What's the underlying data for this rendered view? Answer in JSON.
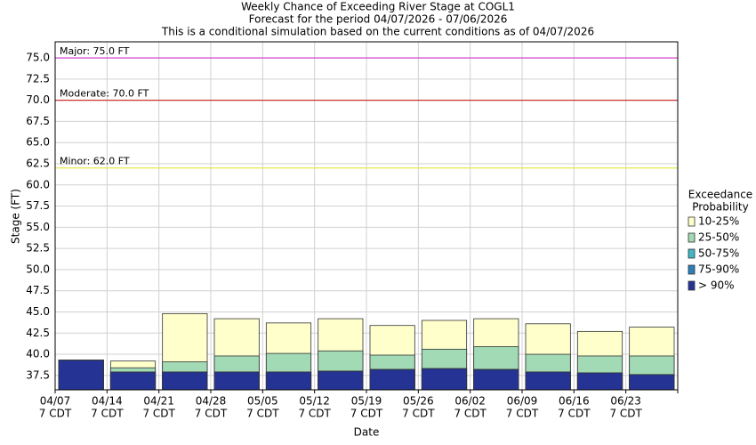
{
  "chart_data": {
    "type": "bar",
    "title": [
      "Weekly Chance of Exceeding River Stage at COGL1",
      "Forecast for the period 04/07/2026 - 07/06/2026",
      "This is a conditional simulation based on the current conditions as of 04/07/2026"
    ],
    "y_label": "Stage (FT)",
    "x_label": "Date",
    "categories": [
      "04/07",
      "04/14",
      "04/21",
      "04/28",
      "05/05",
      "05/12",
      "05/19",
      "05/26",
      "06/02",
      "06/09",
      "06/16",
      "06/23"
    ],
    "category_sublabel": "7 CDT",
    "legend_title": [
      "Exceedance",
      "Probability"
    ],
    "series": [
      {
        "name": "10-25%",
        "color": "#ffffcc",
        "values": [
          39.3,
          39.2,
          44.8,
          44.2,
          43.7,
          44.2,
          43.4,
          44.0,
          44.2,
          43.6,
          42.7,
          43.2
        ]
      },
      {
        "name": "25-50%",
        "color": "#a1dab4",
        "values": [
          39.3,
          38.4,
          39.1,
          39.8,
          40.1,
          40.4,
          39.9,
          40.6,
          40.9,
          40.0,
          39.8,
          39.8
        ]
      },
      {
        "name": "50-75%",
        "color": "#41b6c4",
        "values": [
          39.3,
          37.9,
          37.9,
          37.9,
          37.9,
          38.0,
          38.2,
          38.3,
          38.2,
          37.9,
          37.8,
          37.6
        ]
      },
      {
        "name": "75-90%",
        "color": "#2c7fb8",
        "values": [
          39.3,
          37.9,
          37.9,
          37.9,
          37.9,
          38.0,
          38.2,
          38.3,
          38.2,
          37.9,
          37.8,
          37.6
        ]
      },
      {
        "name": "> 90%",
        "color": "#253494",
        "values": [
          39.3,
          37.9,
          37.9,
          37.9,
          37.9,
          38.0,
          38.2,
          38.3,
          38.2,
          37.9,
          37.8,
          37.6
        ]
      }
    ],
    "thresholds": [
      {
        "label": "Major: 75.0 FT",
        "value": 75,
        "color": "#cc33cc"
      },
      {
        "label": "Moderate: 70.0 FT",
        "value": 70,
        "color": "#cc3333"
      },
      {
        "label": "Minor: 62.0 FT",
        "value": 62,
        "color": "#e6e64d"
      }
    ],
    "ylim": [
      35.8,
      76.9
    ],
    "yticks": [
      37.5,
      {
        "value": 40,
        "label": "40.0"
      },
      42.5,
      {
        "value": 45,
        "label": "45.0"
      },
      47.5,
      {
        "value": 50,
        "label": "50.0"
      },
      52.5,
      {
        "value": 55,
        "label": "55.0"
      },
      57.5,
      {
        "value": 60,
        "label": "60.0"
      },
      62.5,
      {
        "value": 65,
        "label": "65.0"
      },
      67.5,
      {
        "value": 70,
        "label": "70.0"
      },
      72.5,
      {
        "value": 75,
        "label": "75.0"
      }
    ],
    "grid": true
  }
}
